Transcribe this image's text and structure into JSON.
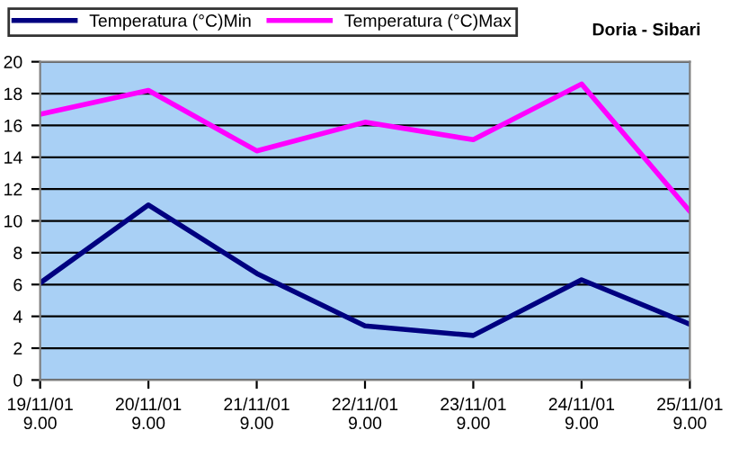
{
  "chart_data": {
    "type": "line",
    "title": "Doria - Sibari",
    "categories": [
      "19/11/01\n9.00",
      "20/11/01\n9.00",
      "21/11/01\n9.00",
      "22/11/01\n9.00",
      "23/11/01\n9.00",
      "24/11/01\n9.00",
      "25/11/01\n9.00"
    ],
    "series": [
      {
        "name": "Temperatura (°C)Min",
        "color": "#000080",
        "values": [
          6.1,
          11.0,
          6.7,
          3.4,
          2.8,
          6.3,
          3.5
        ]
      },
      {
        "name": "Temperatura (°C)Max",
        "color": "#ff00ff",
        "values": [
          16.7,
          18.2,
          14.4,
          16.2,
          15.1,
          18.6,
          10.6
        ]
      }
    ],
    "ylim": [
      0,
      20
    ],
    "yticks": [
      0,
      2,
      4,
      6,
      8,
      10,
      12,
      14,
      16,
      18,
      20
    ],
    "grid": "y",
    "legend": "top",
    "marker": "none",
    "line_style": "solid"
  }
}
